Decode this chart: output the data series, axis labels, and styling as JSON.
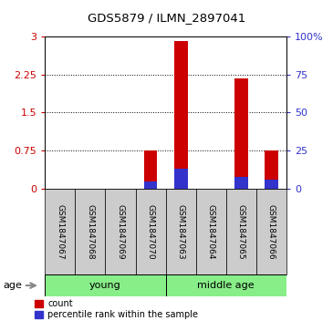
{
  "title": "GDS5879 / ILMN_2897041",
  "samples": [
    "GSM1847067",
    "GSM1847068",
    "GSM1847069",
    "GSM1847070",
    "GSM1847063",
    "GSM1847064",
    "GSM1847065",
    "GSM1847066"
  ],
  "count_values": [
    0,
    0,
    0,
    0.75,
    2.9,
    0,
    2.17,
    0.75
  ],
  "percentile_values": [
    0,
    0,
    0,
    5,
    13,
    0,
    8,
    6
  ],
  "ylim_left": [
    0,
    3
  ],
  "ylim_right": [
    0,
    100
  ],
  "yticks_left": [
    0,
    0.75,
    1.5,
    2.25,
    3
  ],
  "yticks_right": [
    0,
    25,
    50,
    75,
    100
  ],
  "bar_color_count": "#CC0000",
  "bar_color_percentile": "#3333CC",
  "bar_width": 0.45,
  "sample_box_color": "#CCCCCC",
  "green": "#88EE88",
  "legend_count": "count",
  "legend_percentile": "percentile rank within the sample"
}
